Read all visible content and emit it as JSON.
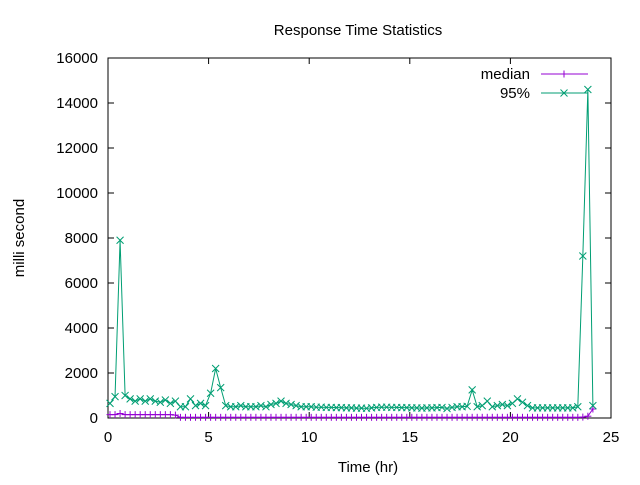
{
  "chart_data": {
    "type": "line",
    "title": "Response Time Statistics",
    "xlabel": "Time (hr)",
    "ylabel": "milli second",
    "xlim": [
      0,
      25
    ],
    "ylim": [
      0,
      16000
    ],
    "xticks": [
      0,
      5,
      10,
      15,
      20,
      25
    ],
    "yticks": [
      0,
      2000,
      4000,
      6000,
      8000,
      10000,
      12000,
      14000,
      16000
    ],
    "grid": false,
    "legend_position": "top-right",
    "x_start": 0.1,
    "x_step": 0.25,
    "series": [
      {
        "name": "median",
        "color": "#9400d3",
        "marker": "plus",
        "values": [
          150,
          150,
          200,
          150,
          150,
          150,
          150,
          150,
          150,
          150,
          150,
          150,
          150,
          130,
          30,
          30,
          30,
          30,
          30,
          30,
          30,
          30,
          30,
          30,
          30,
          30,
          30,
          30,
          30,
          30,
          30,
          30,
          30,
          30,
          30,
          30,
          30,
          30,
          30,
          30,
          30,
          30,
          30,
          30,
          30,
          30,
          30,
          30,
          30,
          30,
          30,
          30,
          30,
          30,
          30,
          30,
          30,
          30,
          30,
          30,
          30,
          30,
          30,
          30,
          30,
          30,
          30,
          30,
          30,
          30,
          30,
          30,
          30,
          30,
          30,
          30,
          30,
          30,
          30,
          30,
          30,
          30,
          30,
          30,
          30,
          30,
          30,
          30,
          30,
          30,
          30,
          30,
          30,
          30,
          40,
          80,
          400
        ]
      },
      {
        "name": "95%",
        "color": "#009e73",
        "marker": "cross",
        "values": [
          650,
          950,
          7900,
          1000,
          850,
          750,
          850,
          750,
          850,
          750,
          700,
          800,
          650,
          750,
          500,
          500,
          850,
          550,
          650,
          550,
          1100,
          2200,
          1350,
          550,
          500,
          500,
          550,
          500,
          500,
          500,
          550,
          500,
          600,
          650,
          750,
          650,
          600,
          550,
          500,
          500,
          500,
          480,
          480,
          470,
          470,
          460,
          460,
          450,
          450,
          440,
          440,
          430,
          450,
          470,
          480,
          480,
          470,
          470,
          460,
          460,
          450,
          450,
          440,
          450,
          450,
          460,
          470,
          420,
          470,
          500,
          500,
          520,
          1250,
          500,
          550,
          750,
          500,
          550,
          600,
          550,
          650,
          850,
          700,
          550,
          450,
          450,
          450,
          450,
          450,
          450,
          450,
          450,
          450,
          500,
          7200,
          14600,
          550
        ]
      }
    ]
  }
}
